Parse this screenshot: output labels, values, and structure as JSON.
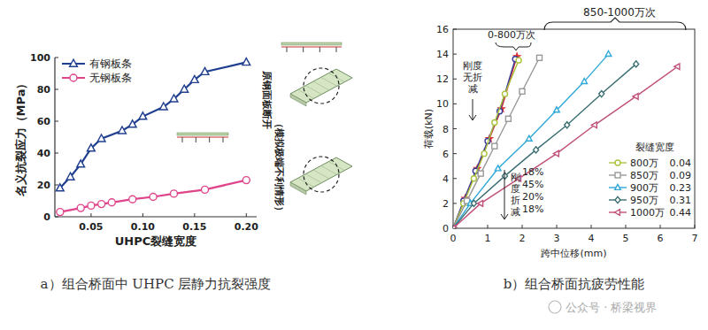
{
  "chart_data": [
    {
      "type": "line",
      "title": "a）组合桥面中 UHPC 层静力抗裂强度",
      "x_label": "UHPC裂缝宽度",
      "y_label": "名义抗裂应力（MPa）",
      "xlim": [
        0.015,
        0.21
      ],
      "ylim": [
        0,
        100
      ],
      "xticks": [
        0.05,
        {
          "value": 0.1,
          "label": "0.10"
        },
        0.15,
        {
          "value": 0.2,
          "label": "0.20"
        }
      ],
      "yticks": [
        0,
        20,
        40,
        60,
        80,
        100
      ],
      "grid": false,
      "legend": "upper left",
      "annotations": [
        "原钢面板断开",
        "（模拟极端不利情形）"
      ],
      "series": [
        {
          "name": "有钢板条",
          "color": "#1f3f8f",
          "marker": "triangle",
          "x": [
            0.02,
            0.03,
            0.04,
            0.05,
            0.06,
            0.08,
            0.09,
            0.1,
            0.12,
            0.13,
            0.14,
            0.15,
            0.16,
            0.2
          ],
          "values": [
            18,
            25,
            33,
            43,
            49,
            54,
            58,
            63,
            69,
            74,
            80,
            86,
            91,
            97
          ]
        },
        {
          "name": "无钢板条",
          "color": "#e0448a",
          "marker": "circle",
          "x": [
            0.02,
            0.04,
            0.05,
            0.06,
            0.07,
            0.09,
            0.11,
            0.13,
            0.16,
            0.2
          ],
          "values": [
            3,
            5.5,
            7,
            8,
            9,
            11,
            12.5,
            14.5,
            17,
            23
          ]
        }
      ]
    },
    {
      "type": "line",
      "title": "b）组合桥面抗疲劳性能",
      "x_label": "跨中位移(mm)",
      "y_label": "荷载(kN)",
      "xlim": [
        0,
        7
      ],
      "ylim": [
        0,
        16
      ],
      "xticks": [
        0,
        1,
        2,
        3,
        4,
        5,
        6,
        7
      ],
      "yticks": [
        0,
        2,
        4,
        6,
        8,
        10,
        12,
        14,
        16
      ],
      "grid": false,
      "legend": "lower right",
      "legend_title": "裂缝宽度",
      "annotations": [
        "0-800万次",
        "850-1000万次",
        "刚度无折减",
        "刚度折减",
        "18%",
        "45%",
        "20%",
        "18%"
      ],
      "series": [
        {
          "color": "#e03030",
          "marker": "star",
          "x": [
            0,
            0.35,
            0.7,
            1.05,
            1.4,
            1.85
          ],
          "values": [
            0,
            2.4,
            4.8,
            7.2,
            9.6,
            13.8
          ]
        },
        {
          "color": "#3a3a99",
          "marker": "circle",
          "x": [
            0,
            0.3,
            0.65,
            1.0,
            1.35,
            1.8
          ],
          "values": [
            0,
            2.2,
            4.6,
            7.0,
            9.4,
            13.6
          ]
        },
        {
          "name": "800万",
          "color": "#a8c43a",
          "marker": "circle",
          "crack_width": 0.04,
          "x": [
            0,
            0.3,
            0.6,
            0.9,
            1.2,
            1.5,
            1.9
          ],
          "values": [
            0,
            2,
            4,
            6,
            8.5,
            10.8,
            13.5
          ]
        },
        {
          "name": "850万",
          "color": "#999999",
          "marker": "square",
          "crack_width": 0.09,
          "x": [
            0,
            0.4,
            0.8,
            1.2,
            1.6,
            2.0,
            2.5
          ],
          "values": [
            0,
            2.2,
            4.4,
            6.6,
            8.8,
            11,
            13.7
          ]
        },
        {
          "name": "900万",
          "color": "#2fa8d8",
          "marker": "triangle",
          "crack_width": 0.23,
          "x": [
            0,
            0.5,
            1.3,
            2.2,
            3.0,
            3.8,
            4.5
          ],
          "values": [
            0,
            2,
            4.8,
            7.2,
            9.5,
            11.8,
            14
          ]
        },
        {
          "name": "950万",
          "color": "#3a6e72",
          "marker": "diamond",
          "crack_width": 0.31,
          "x": [
            0,
            0.6,
            1.5,
            2.4,
            3.3,
            4.3,
            5.3
          ],
          "values": [
            0,
            2,
            4.2,
            6.3,
            8.3,
            10.8,
            13.2
          ]
        },
        {
          "name": "1000万",
          "color": "#c0507a",
          "marker": "triangle-left",
          "crack_width": 0.44,
          "x": [
            0,
            0.8,
            1.9,
            3.0,
            4.1,
            5.3,
            6.5
          ],
          "values": [
            0,
            2,
            4.0,
            6.0,
            8.3,
            10.6,
            13
          ]
        }
      ]
    }
  ],
  "watermark": "公众号 · 桥梁视界"
}
